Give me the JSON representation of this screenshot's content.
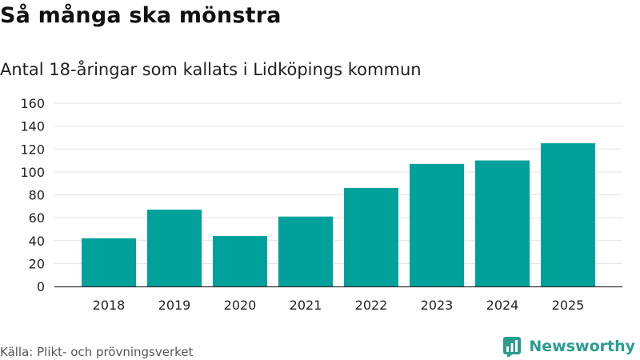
{
  "header": {
    "title": "Så många ska mönstra",
    "subtitle": "Antal 18-åringar som kallats i Lidköpings kommun"
  },
  "footer": {
    "source": "Källa: Plikt- och prövningsverket",
    "brand": "Newsworthy",
    "brand_icon": "bar-chart-logo-icon"
  },
  "colors": {
    "bar": "#00a19a",
    "grid": "#e3e3e3",
    "axis": "#333333",
    "brand": "#2a9d8f"
  },
  "chart_data": {
    "type": "bar",
    "title": "Så många ska mönstra",
    "subtitle": "Antal 18-åringar som kallats i Lidköpings kommun",
    "xlabel": "",
    "ylabel": "",
    "categories": [
      "2018",
      "2019",
      "2020",
      "2021",
      "2022",
      "2023",
      "2024",
      "2025"
    ],
    "values": [
      42,
      67,
      44,
      61,
      86,
      107,
      110,
      125
    ],
    "ylim": [
      0,
      160
    ],
    "yticks": [
      0,
      20,
      40,
      60,
      80,
      100,
      120,
      140,
      160
    ],
    "grid": true
  }
}
